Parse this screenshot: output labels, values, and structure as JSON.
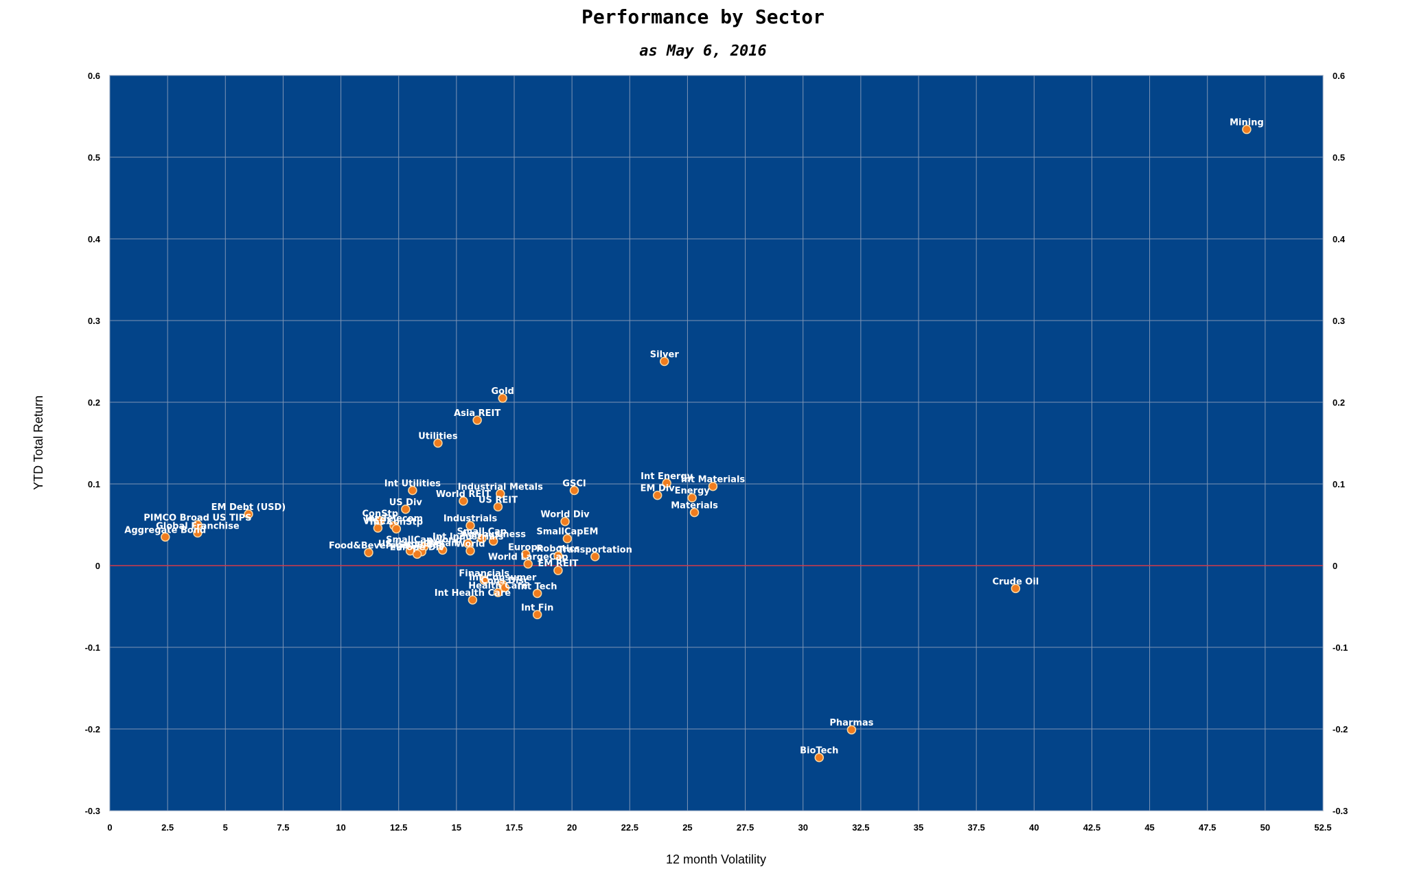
{
  "chart_data": {
    "type": "scatter",
    "title": "Performance by Sector",
    "subtitle": "as May 6, 2016",
    "xlabel": "12 month Volatility",
    "ylabel": "YTD Total Return",
    "xlim": [
      0,
      52.5
    ],
    "ylim": [
      -0.3,
      0.6
    ],
    "x_ticks": [
      "0",
      "2.5",
      "5",
      "7.5",
      "10",
      "12.5",
      "15",
      "17.5",
      "20",
      "22.5",
      "25",
      "27.5",
      "30",
      "32.5",
      "35",
      "37.5",
      "40",
      "42.5",
      "45",
      "47.5",
      "50",
      "52.5"
    ],
    "y_ticks": [
      "-0.3",
      "-0.2",
      "-0.1",
      "0",
      "0.1",
      "0.2",
      "0.3",
      "0.4",
      "0.5",
      "0.6"
    ],
    "grid": true,
    "colors": {
      "plot_bg": "#034489",
      "grid": "#7f95b5",
      "zero_line": "#d33a4a",
      "marker": "#f07c1e",
      "label": "#ffffff"
    },
    "points": [
      {
        "label": "Mining",
        "x": 49.2,
        "y": 0.534
      },
      {
        "label": "Silver",
        "x": 24.0,
        "y": 0.25
      },
      {
        "label": "Gold",
        "x": 17.0,
        "y": 0.205
      },
      {
        "label": "Asia REIT",
        "x": 15.9,
        "y": 0.178
      },
      {
        "label": "Utilities",
        "x": 14.2,
        "y": 0.15
      },
      {
        "label": "Industrial Metals",
        "x": 16.9,
        "y": 0.088
      },
      {
        "label": "Int Utilities",
        "x": 13.1,
        "y": 0.092
      },
      {
        "label": "World REIT",
        "x": 15.3,
        "y": 0.079
      },
      {
        "label": "US REIT",
        "x": 16.8,
        "y": 0.072
      },
      {
        "label": "US Div",
        "x": 12.8,
        "y": 0.069
      },
      {
        "label": "GSCI",
        "x": 20.1,
        "y": 0.092
      },
      {
        "label": "Int Energy",
        "x": 24.1,
        "y": 0.101
      },
      {
        "label": "EM Div",
        "x": 23.7,
        "y": 0.086
      },
      {
        "label": "Int Materials",
        "x": 26.1,
        "y": 0.097
      },
      {
        "label": "Energy",
        "x": 25.2,
        "y": 0.083
      },
      {
        "label": "Materials",
        "x": 25.3,
        "y": 0.065
      },
      {
        "label": "EM Debt (USD)",
        "x": 6.0,
        "y": 0.063
      },
      {
        "label": "PIMCO Broad US TIPS",
        "x": 3.8,
        "y": 0.05
      },
      {
        "label": "Aggregate Bond",
        "x": 2.4,
        "y": 0.035
      },
      {
        "label": "Global Franchise",
        "x": 3.8,
        "y": 0.04
      },
      {
        "label": "ConStp",
        "x": 11.7,
        "y": 0.055
      },
      {
        "label": "Int Telecom",
        "x": 12.3,
        "y": 0.049
      },
      {
        "label": "VICEX",
        "x": 11.6,
        "y": 0.046
      },
      {
        "label": "Int ConStp",
        "x": 12.4,
        "y": 0.045
      },
      {
        "label": "Food&Beverage",
        "x": 11.2,
        "y": 0.016
      },
      {
        "label": "US LargeCap",
        "x": 13.0,
        "y": 0.018
      },
      {
        "label": "SmallCapWorld",
        "x": 13.6,
        "y": 0.023
      },
      {
        "label": "SmallCap",
        "x": 13.5,
        "y": 0.017
      },
      {
        "label": "Retail",
        "x": 14.4,
        "y": 0.019
      },
      {
        "label": "Int Industrials",
        "x": 15.5,
        "y": 0.027
      },
      {
        "label": "Industrials",
        "x": 15.6,
        "y": 0.049
      },
      {
        "label": "Agribusiness",
        "x": 16.6,
        "y": 0.03
      },
      {
        "label": "Small Cap",
        "x": 16.1,
        "y": 0.033
      },
      {
        "label": "World",
        "x": 15.6,
        "y": 0.018
      },
      {
        "label": "World Div",
        "x": 19.7,
        "y": 0.054
      },
      {
        "label": "SmallCapEM",
        "x": 19.8,
        "y": 0.033
      },
      {
        "label": "Transportation",
        "x": 21.0,
        "y": 0.011
      },
      {
        "label": "Europe",
        "x": 18.0,
        "y": 0.014
      },
      {
        "label": "Robotics",
        "x": 19.4,
        "y": 0.012
      },
      {
        "label": "World LargeCap",
        "x": 18.1,
        "y": 0.002
      },
      {
        "label": "EM REIT",
        "x": 19.4,
        "y": -0.006
      },
      {
        "label": "Europe Div",
        "x": 13.3,
        "y": 0.014
      },
      {
        "label": "Financials",
        "x": 16.2,
        "y": -0.018
      },
      {
        "label": "Int Consumer",
        "x": 17.0,
        "y": -0.023
      },
      {
        "label": "Cons Disc",
        "x": 17.1,
        "y": -0.027
      },
      {
        "label": "Health Care",
        "x": 16.8,
        "y": -0.033
      },
      {
        "label": "Int Tech",
        "x": 18.5,
        "y": -0.034
      },
      {
        "label": "Int Health Care",
        "x": 15.7,
        "y": -0.042
      },
      {
        "label": "Int Fin",
        "x": 18.5,
        "y": -0.06
      },
      {
        "label": "Crude Oil",
        "x": 39.2,
        "y": -0.028
      },
      {
        "label": "Pharmas",
        "x": 32.1,
        "y": -0.201
      },
      {
        "label": "BioTech",
        "x": 30.7,
        "y": -0.235
      }
    ]
  }
}
